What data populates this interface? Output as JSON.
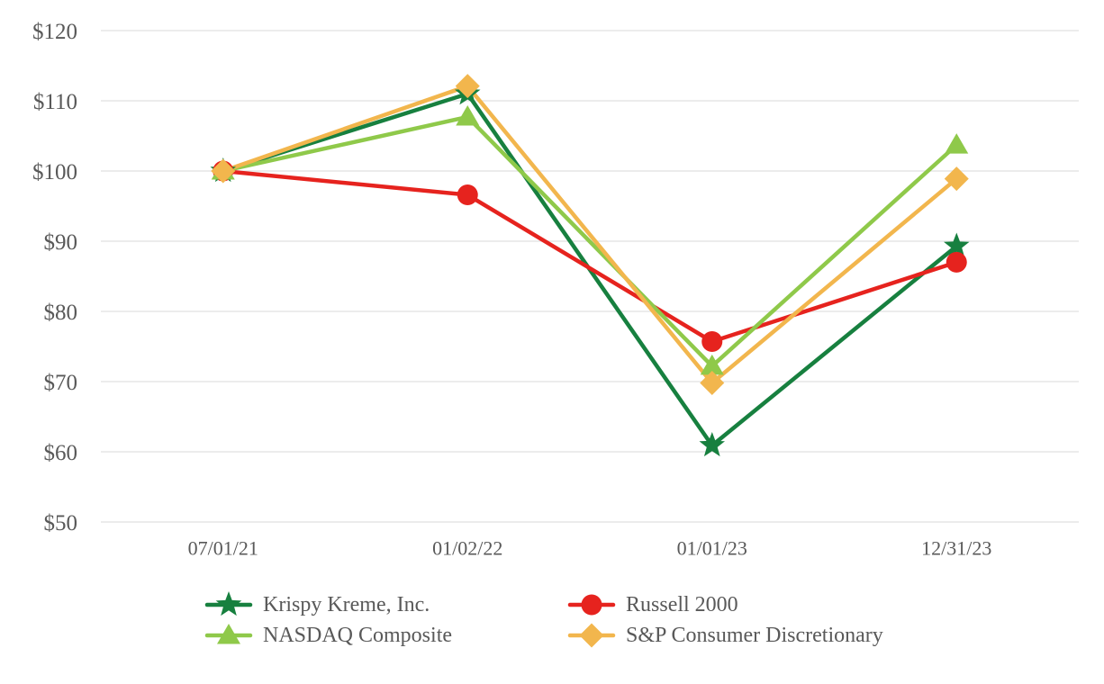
{
  "chart_data": {
    "type": "line",
    "title": "",
    "xlabel": "",
    "ylabel": "",
    "categories": [
      "07/01/21",
      "01/02/22",
      "01/01/23",
      "12/31/23"
    ],
    "yticks": [
      50,
      60,
      70,
      80,
      90,
      100,
      110,
      120
    ],
    "ytick_labels": [
      "$50",
      "$60",
      "$70",
      "$80",
      "$90",
      "$100",
      "$110",
      "$120"
    ],
    "ylim": [
      50,
      120
    ],
    "grid": "horizontal-only",
    "legend_position": "bottom",
    "series": [
      {
        "name": "Krispy Kreme, Inc.",
        "color": "#17803f",
        "marker": "star",
        "values": [
          100,
          111.0,
          60.9,
          89.3
        ]
      },
      {
        "name": "Russell 2000",
        "color": "#e6231e",
        "marker": "circle",
        "values": [
          100,
          96.6,
          75.7,
          87.0
        ]
      },
      {
        "name": "NASDAQ Composite",
        "color": "#8fc94a",
        "marker": "triangle",
        "values": [
          100,
          107.7,
          72.2,
          103.7
        ]
      },
      {
        "name": "S&P Consumer Discretionary",
        "color": "#f2b64d",
        "marker": "diamond",
        "values": [
          100,
          112.1,
          69.8,
          98.9
        ]
      }
    ],
    "colors": {
      "axis_text": "#595959",
      "gridline": "#e6e6e6",
      "background": "#ffffff"
    }
  }
}
